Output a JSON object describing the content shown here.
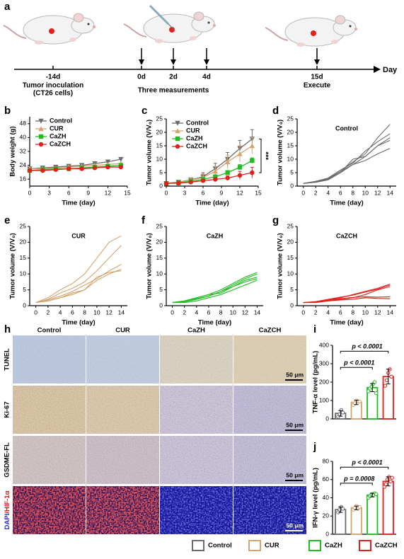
{
  "panel_labels": [
    "a",
    "b",
    "c",
    "d",
    "e",
    "f",
    "g",
    "h",
    "i",
    "j"
  ],
  "timeline": {
    "ticks": [
      "-14d",
      "0d",
      "2d",
      "4d",
      "15d"
    ],
    "notes": [
      "Tumor inoculation",
      "(CT26 cells)",
      "Three measurements",
      "Execute"
    ],
    "axis_label": "Day"
  },
  "chart_data": [
    {
      "type": "line",
      "xlabel": "Time (day)",
      "ylabel": "Body weight (g)",
      "x": [
        0,
        2,
        4,
        6,
        8,
        10,
        12,
        14
      ],
      "xlim": [
        0,
        15
      ],
      "xticks": [
        0,
        3,
        6,
        9,
        12,
        15
      ],
      "ylim": [
        12,
        52
      ],
      "yticks": [
        16,
        24,
        32,
        40,
        48
      ],
      "series": [
        {
          "name": "Control",
          "color": "#6b6b6b",
          "marker": "v",
          "values": [
            22,
            22.5,
            23,
            23.5,
            24,
            25,
            26,
            27.5
          ]
        },
        {
          "name": "CUR",
          "color": "#d4a46e",
          "marker": "^",
          "values": [
            22,
            22,
            22.5,
            23,
            23.5,
            24,
            24.5,
            25
          ]
        },
        {
          "name": "CaZH",
          "color": "#22bb22",
          "marker": "s",
          "values": [
            21,
            21.5,
            22,
            22,
            22.5,
            23,
            23.5,
            24
          ]
        },
        {
          "name": "CaZCH",
          "color": "#e0201b",
          "marker": "o",
          "values": [
            21,
            21,
            21.5,
            22,
            22,
            22.5,
            23,
            23
          ]
        }
      ]
    },
    {
      "type": "line",
      "xlabel": "Time (day)",
      "ylabel": "Tumor volume (V/V₀)",
      "annotation": "***",
      "x": [
        0,
        2,
        4,
        6,
        8,
        10,
        12,
        14
      ],
      "xlim": [
        0,
        15
      ],
      "xticks": [
        0,
        3,
        6,
        9,
        12,
        15
      ],
      "ylim": [
        0,
        25
      ],
      "yticks": [
        0,
        5,
        10,
        15,
        20,
        25
      ],
      "series": [
        {
          "name": "Control",
          "color": "#6b6b6b",
          "marker": "v",
          "values": [
            1,
            1.5,
            2.3,
            3.5,
            6.5,
            10,
            14,
            17.5
          ],
          "errors": [
            0.1,
            0.4,
            0.8,
            1.5,
            2,
            2.5,
            3,
            3.5
          ]
        },
        {
          "name": "CUR",
          "color": "#d4a46e",
          "marker": "^",
          "values": [
            1,
            1.4,
            2.2,
            3.2,
            5.5,
            9,
            12,
            15
          ],
          "errors": [
            0.1,
            0.4,
            0.7,
            1.3,
            1.8,
            2.5,
            3,
            3
          ]
        },
        {
          "name": "CaZH",
          "color": "#22bb22",
          "marker": "s",
          "values": [
            1,
            1.2,
            1.8,
            2.5,
            3.5,
            5,
            7,
            9.5
          ],
          "errors": [
            0.1,
            0.2,
            0.3,
            0.4,
            0.6,
            0.8,
            1,
            1
          ]
        },
        {
          "name": "CaZCH",
          "color": "#e0201b",
          "marker": "o",
          "values": [
            1,
            1.1,
            1.5,
            2,
            2.5,
            3,
            4,
            5
          ],
          "errors": [
            0.1,
            0.2,
            0.3,
            0.4,
            0.6,
            0.8,
            1.5,
            2
          ]
        }
      ]
    },
    {
      "type": "line",
      "title": "Control",
      "xlabel": "Time (day)",
      "ylabel": "Tumor volume (V/V₀)",
      "x": [
        0,
        2,
        4,
        6,
        8,
        10,
        12,
        14
      ],
      "xlim": [
        -1,
        15
      ],
      "xticks": [
        0,
        2,
        4,
        6,
        8,
        10,
        12,
        14
      ],
      "ylim": [
        0,
        25
      ],
      "yticks": [
        0,
        5,
        10,
        15,
        20,
        25
      ],
      "series": [
        {
          "color": "#6b6b6b",
          "values": [
            1,
            1.5,
            2.5,
            5.5,
            9,
            12,
            18,
            23
          ]
        },
        {
          "color": "#6b6b6b",
          "values": [
            1,
            1.8,
            3,
            6,
            8.5,
            13,
            16.5,
            19.5
          ]
        },
        {
          "color": "#6b6b6b",
          "values": [
            1,
            1.5,
            2.5,
            5,
            10,
            11,
            15,
            18
          ]
        },
        {
          "color": "#6b6b6b",
          "values": [
            1,
            1.6,
            2.8,
            5.5,
            8,
            11,
            15,
            17
          ]
        },
        {
          "color": "#6b6b6b",
          "values": [
            1,
            1.4,
            2.3,
            5,
            8,
            9.5,
            12,
            14
          ]
        }
      ]
    },
    {
      "type": "line",
      "title": "CUR",
      "xlabel": "Time (day)",
      "ylabel": "Tumor volume (V/V₀)",
      "x": [
        0,
        2,
        4,
        6,
        8,
        10,
        12,
        14
      ],
      "xlim": [
        -1,
        15
      ],
      "xticks": [
        0,
        2,
        4,
        6,
        8,
        10,
        12,
        14
      ],
      "ylim": [
        0,
        25
      ],
      "yticks": [
        0,
        5,
        10,
        15,
        20,
        25
      ],
      "series": [
        {
          "color": "#d4a46e",
          "values": [
            1,
            2.5,
            5,
            7,
            10,
            15,
            20,
            22
          ]
        },
        {
          "color": "#d4a46e",
          "values": [
            1,
            2,
            4,
            5.5,
            7.5,
            11,
            15,
            19
          ]
        },
        {
          "color": "#d4a46e",
          "values": [
            1,
            1.8,
            3,
            4.5,
            6.5,
            8.5,
            11,
            13
          ]
        },
        {
          "color": "#d4a46e",
          "values": [
            1,
            1.5,
            2.5,
            3.5,
            5,
            8,
            10,
            11.5
          ]
        },
        {
          "color": "#d4a46e",
          "values": [
            1,
            1.5,
            2.5,
            4,
            5,
            9,
            10.5,
            11
          ]
        }
      ]
    },
    {
      "type": "line",
      "title": "CaZH",
      "xlabel": "Time (day)",
      "ylabel": "Tumor volume (V/V₀)",
      "x": [
        0,
        2,
        4,
        6,
        8,
        10,
        12,
        14
      ],
      "xlim": [
        -1,
        15
      ],
      "xticks": [
        0,
        2,
        4,
        6,
        8,
        10,
        12,
        14
      ],
      "ylim": [
        0,
        25
      ],
      "yticks": [
        0,
        5,
        10,
        15,
        20,
        25
      ],
      "series": [
        {
          "color": "#22bb22",
          "values": [
            1,
            1.5,
            2.5,
            3.5,
            5,
            7,
            9,
            10.5
          ]
        },
        {
          "color": "#22bb22",
          "values": [
            1,
            1.2,
            2,
            3,
            4.5,
            6.5,
            8.5,
            10
          ]
        },
        {
          "color": "#22bb22",
          "values": [
            1,
            1.5,
            2.5,
            3.5,
            4,
            6,
            8,
            9
          ]
        },
        {
          "color": "#22bb22",
          "values": [
            1,
            1.3,
            2.2,
            3,
            4.5,
            6,
            7.5,
            8.5
          ]
        },
        {
          "color": "#22bb22",
          "values": [
            1,
            1,
            1.5,
            2.5,
            3.5,
            5,
            6.5,
            8
          ]
        }
      ]
    },
    {
      "type": "line",
      "title": "CaZCH",
      "xlabel": "Time (day)",
      "ylabel": "Tumor volume (V/V₀)",
      "x": [
        0,
        2,
        4,
        6,
        8,
        10,
        12,
        14
      ],
      "xlim": [
        -1,
        15
      ],
      "xticks": [
        0,
        2,
        4,
        6,
        8,
        10,
        12,
        14
      ],
      "ylim": [
        0,
        25
      ],
      "yticks": [
        0,
        5,
        10,
        15,
        20,
        25
      ],
      "series": [
        {
          "color": "#e0201b",
          "values": [
            1,
            1.2,
            1.8,
            2.5,
            3.5,
            4.5,
            5.5,
            6.8
          ]
        },
        {
          "color": "#e0201b",
          "values": [
            1,
            1.3,
            2,
            2.7,
            3.3,
            4.3,
            5.2,
            6.5
          ]
        },
        {
          "color": "#e0201b",
          "values": [
            1,
            1.1,
            1.5,
            2,
            2.5,
            3.5,
            5,
            6
          ]
        },
        {
          "color": "#e0201b",
          "values": [
            1,
            1.2,
            1.7,
            2.2,
            2.6,
            2.8,
            2.7,
            2.8
          ]
        },
        {
          "color": "#e0201b",
          "values": [
            1,
            1,
            1.5,
            1.8,
            2,
            2.5,
            2.3,
            2.2
          ]
        }
      ]
    },
    {
      "type": "bar",
      "ylabel": "TNF-α level (pg/mL)",
      "categories": [
        null,
        null,
        null,
        null
      ],
      "colors": [
        "#6b6b6b",
        "#d4a46e",
        "#22bb22",
        "#e0201b"
      ],
      "values": [
        30,
        90,
        170,
        230
      ],
      "errors": [
        15,
        12,
        22,
        40
      ],
      "points": [
        [
          12,
          25,
          48,
          35
        ],
        [
          75,
          85,
          100,
          95,
          95
        ],
        [
          150,
          165,
          175,
          190,
          200,
          140
        ],
        [
          180,
          210,
          250,
          270,
          230
        ]
      ],
      "ylim": [
        0,
        400
      ],
      "yticks": [
        0,
        100,
        200,
        300,
        400
      ],
      "annotations": [
        "p < 0.0001",
        "p < 0.0001"
      ]
    },
    {
      "type": "bar",
      "ylabel": "IFN-γ level (pg/mL)",
      "categories": [
        null,
        null,
        null,
        null
      ],
      "colors": [
        "#6b6b6b",
        "#d4a46e",
        "#22bb22",
        "#e0201b"
      ],
      "values": [
        27,
        29,
        43,
        58
      ],
      "errors": [
        3,
        2,
        2,
        5
      ],
      "points": [
        [
          24,
          27,
          30,
          28
        ],
        [
          27,
          29,
          31,
          28,
          30
        ],
        [
          40,
          42,
          44,
          43,
          45,
          44
        ],
        [
          52,
          55,
          60,
          63,
          58,
          62
        ]
      ],
      "ylim": [
        0,
        80
      ],
      "yticks": [
        0,
        20,
        40,
        60,
        80
      ],
      "annotations": [
        "p = 0.0008",
        "p < 0.0001"
      ]
    }
  ],
  "micrographs": {
    "columns": [
      "Control",
      "CUR",
      "CaZH",
      "CaZCH"
    ],
    "rows": [
      "TUNEL",
      "Ki-67",
      "GSDME-FL",
      [
        "DAPI",
        "/HIF-1α"
      ]
    ],
    "scale_bar": "50 μm"
  },
  "legend": [
    {
      "name": "Control",
      "color": "#6b6b6b"
    },
    {
      "name": "CUR",
      "color": "#d4a46e"
    },
    {
      "name": "CaZH",
      "color": "#22bb22"
    },
    {
      "name": "CaZCH",
      "color": "#e0201b"
    }
  ]
}
